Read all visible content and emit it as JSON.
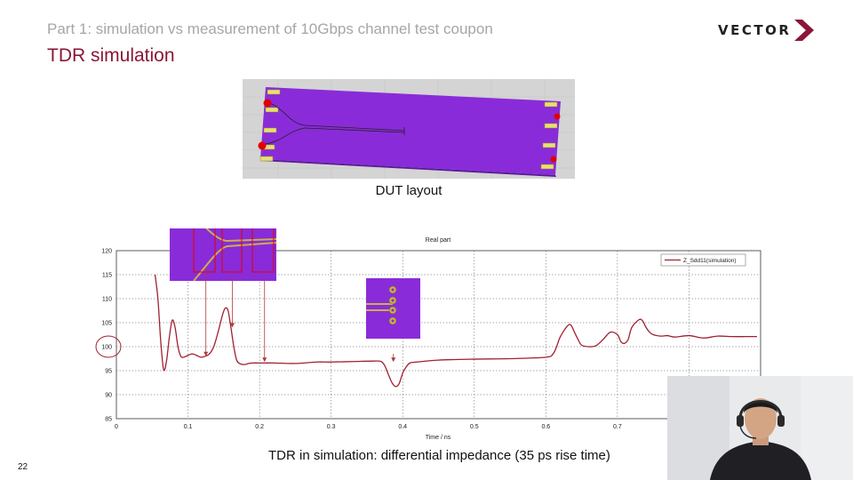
{
  "slide": {
    "subtitle": "Part 1: simulation vs measurement of 10Gbps channel test coupon",
    "title": "TDR simulation",
    "logo_text": "VECTOR",
    "page_number": "22",
    "dut_caption": "DUT layout",
    "bottom_caption": "TDR in simulation: differential impedance (35 ps rise time)",
    "brand_color": "#8b1538"
  },
  "chart_data": {
    "type": "line",
    "title": "Real part",
    "xlabel": "Time / ns",
    "ylabel": "",
    "xlim": [
      0,
      0.9
    ],
    "ylim": [
      85,
      120
    ],
    "x_ticks": [
      0,
      0.1,
      0.2,
      0.3,
      0.4,
      0.5,
      0.6,
      0.7,
      0.8
    ],
    "y_ticks": [
      85,
      90,
      95,
      100,
      105,
      110,
      115,
      120
    ],
    "x_tick_labels": [
      "0",
      "0.1",
      "0.2",
      "0.3",
      "0.4",
      "0.5",
      "0.6",
      "0.7",
      ""
    ],
    "y_tick_labels": [
      "85",
      "90",
      "95",
      "100",
      "105",
      "110",
      "115",
      "120"
    ],
    "grid": true,
    "legend_position": "top-right",
    "series": [
      {
        "name": "Z_Sdd11(simulation)",
        "color": "#a0212f",
        "x": [
          0.054,
          0.058,
          0.062,
          0.066,
          0.07,
          0.074,
          0.078,
          0.082,
          0.086,
          0.09,
          0.094,
          0.1,
          0.106,
          0.112,
          0.118,
          0.124,
          0.13,
          0.136,
          0.142,
          0.148,
          0.152,
          0.156,
          0.16,
          0.164,
          0.168,
          0.172,
          0.176,
          0.18,
          0.185,
          0.19,
          0.2,
          0.22,
          0.25,
          0.28,
          0.3,
          0.33,
          0.36,
          0.37,
          0.375,
          0.38,
          0.385,
          0.39,
          0.395,
          0.4,
          0.405,
          0.41,
          0.42,
          0.45,
          0.5,
          0.55,
          0.6,
          0.61,
          0.615,
          0.62,
          0.63,
          0.635,
          0.64,
          0.645,
          0.65,
          0.66,
          0.67,
          0.68,
          0.69,
          0.7,
          0.705,
          0.71,
          0.715,
          0.72,
          0.73,
          0.735,
          0.74,
          0.745,
          0.75,
          0.76,
          0.77,
          0.78,
          0.8,
          0.82,
          0.84,
          0.86,
          0.88,
          0.895
        ],
        "y": [
          115,
          110,
          101,
          95.2,
          97,
          102,
          105.5,
          104,
          100,
          98,
          97.8,
          98.2,
          98.5,
          98.2,
          97.8,
          98,
          98.5,
          100,
          103,
          106.5,
          108,
          107.5,
          104,
          100,
          97.2,
          96.5,
          96.3,
          96.3,
          96.5,
          96.6,
          96.6,
          96.6,
          96.5,
          96.8,
          96.8,
          96.9,
          97,
          96.9,
          96,
          94.2,
          92.5,
          91.7,
          92.3,
          94.5,
          95.8,
          96.6,
          96.8,
          97.2,
          97.4,
          97.5,
          97.8,
          98.5,
          100,
          102,
          104.3,
          104.5,
          103,
          101.5,
          100.3,
          100,
          100.2,
          101.5,
          103,
          102.5,
          101,
          100.7,
          101.5,
          104,
          105.6,
          105.4,
          104,
          103,
          102.5,
          102.2,
          102.3,
          102,
          102.3,
          101.8,
          102.2,
          102.1,
          102.1,
          102.1
        ]
      }
    ],
    "annotations": [
      {
        "x": 0.125,
        "y_from": 116.5,
        "y_to": 98
      },
      {
        "x": 0.162,
        "y_from": 114.5,
        "y_to": 104
      },
      {
        "x": 0.207,
        "y_from": 114,
        "y_to": 96.8
      },
      {
        "x": 0.387,
        "y_from": 98.5,
        "y_to": 96.8
      }
    ]
  }
}
